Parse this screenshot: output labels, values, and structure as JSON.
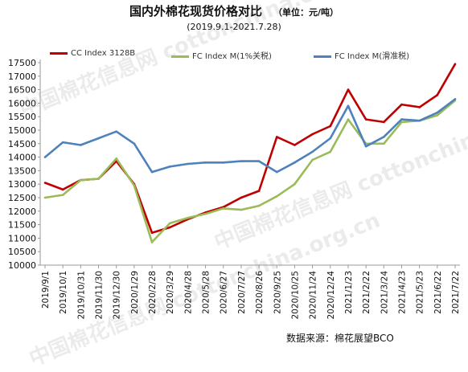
{
  "chart_data": {
    "type": "line",
    "title": "国内外棉花现货价格对比",
    "unit": "（单位：元/吨）",
    "subtitle": "(2019.9.1-2021.7.28)",
    "source": "数据来源：棉花展望BCO",
    "watermark": "中国棉花信息网 cottonchina.org.cn",
    "ylim": [
      10000,
      17500
    ],
    "yticks": [
      10000,
      10500,
      11000,
      11500,
      12000,
      12500,
      13000,
      13500,
      14000,
      14500,
      15000,
      15500,
      16000,
      16500,
      17000,
      17500
    ],
    "categories": [
      "2019/9/1",
      "2019/10/1",
      "2019/10/31",
      "2019/11/30",
      "2019/12/30",
      "2020/1/29",
      "2020/2/28",
      "2020/3/29",
      "2020/4/28",
      "2020/5/28",
      "2020/6/27",
      "2020/7/27",
      "2020/8/26",
      "2020/9/25",
      "2020/10/25",
      "2020/11/24",
      "2020/12/24",
      "2021/1/23",
      "2021/2/22",
      "2021/3/24",
      "2021/4/23",
      "2021/5/23",
      "2021/6/22",
      "2021/7/22"
    ],
    "series": [
      {
        "name": "CC Index 3128B",
        "color": "#c00000",
        "values": [
          13050,
          12800,
          13150,
          13200,
          13850,
          13000,
          11200,
          11400,
          11700,
          11950,
          12150,
          12500,
          12750,
          14750,
          14450,
          14850,
          15150,
          16500,
          15400,
          15300,
          15950,
          15850,
          16300,
          17450
        ]
      },
      {
        "name": "FC Index M(1%关税)",
        "color": "#9bbb59",
        "values": [
          12500,
          12600,
          13150,
          13200,
          13950,
          12950,
          10850,
          11550,
          11750,
          11900,
          12100,
          12050,
          12200,
          12550,
          13000,
          13900,
          14200,
          15400,
          14500,
          14500,
          15300,
          15350,
          15550,
          16100
        ]
      },
      {
        "name": "FC Index M(滑准税)",
        "color": "#4f81bd",
        "values": [
          14000,
          14550,
          14450,
          14700,
          14950,
          14500,
          13450,
          13650,
          13750,
          13800,
          13800,
          13850,
          13850,
          13450,
          13800,
          14200,
          14700,
          15900,
          14400,
          14750,
          15400,
          15350,
          15650,
          16150
        ]
      }
    ],
    "grid": false,
    "legend": "top"
  }
}
